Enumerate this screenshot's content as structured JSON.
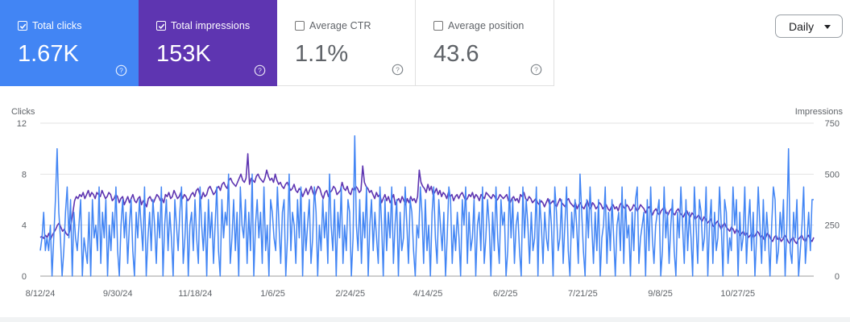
{
  "metrics": {
    "clicks": {
      "label": "Total clicks",
      "value": "1.67K",
      "checked": true,
      "color": "#4285f4"
    },
    "impressions": {
      "label": "Total impressions",
      "value": "153K",
      "checked": true,
      "color": "#5e35b1"
    },
    "ctr": {
      "label": "Average CTR",
      "value": "1.1%",
      "checked": false
    },
    "position": {
      "label": "Average position",
      "value": "43.6",
      "checked": false
    }
  },
  "controls": {
    "granularity": "Daily"
  },
  "chart_data": {
    "type": "line",
    "left_axis_label": "Clicks",
    "right_axis_label": "Impressions",
    "left_ticks": [
      "12",
      "8",
      "4",
      "0"
    ],
    "right_ticks": [
      "750",
      "500",
      "250",
      "0"
    ],
    "ylim_left": [
      0,
      12
    ],
    "ylim_right": [
      0,
      750
    ],
    "x_tick_labels": [
      "8/12/24",
      "9/30/24",
      "11/18/24",
      "1/6/25",
      "2/24/25",
      "4/14/25",
      "6/2/25",
      "7/21/25",
      "9/8/25",
      "10/27/25"
    ],
    "x_range": [
      "2024-08-12",
      "2025-12-14"
    ],
    "grid": true,
    "series": [
      {
        "name": "Clicks",
        "axis": "left",
        "color": "#4285f4",
        "values": [
          2,
          3,
          5,
          2,
          3,
          2,
          4,
          0,
          3,
          6,
          10,
          5,
          3,
          0,
          2,
          5,
          7,
          3,
          6,
          0,
          5,
          3,
          2,
          4,
          6,
          0,
          3,
          2,
          1,
          5,
          0,
          6,
          3,
          4,
          2,
          7,
          1,
          5,
          3,
          6,
          0,
          4,
          2,
          5,
          3,
          7,
          2,
          0,
          4,
          6,
          3,
          5,
          1,
          4,
          6,
          2,
          0,
          5,
          3,
          6,
          4,
          2,
          7,
          0,
          3,
          5,
          2,
          6,
          4,
          1,
          5,
          3,
          7,
          0,
          4,
          6,
          2,
          5,
          3,
          0,
          6,
          4,
          2,
          5,
          7,
          1,
          3,
          6,
          0,
          4,
          5,
          2,
          6,
          3,
          1,
          7,
          4,
          2,
          5,
          0,
          6,
          3,
          5,
          1,
          4,
          7,
          2,
          0,
          6,
          3,
          5,
          4,
          8,
          1,
          3,
          6,
          2,
          5,
          0,
          7,
          4,
          3,
          6,
          1,
          5,
          2,
          8,
          0,
          4,
          6,
          3,
          5,
          1,
          7,
          2,
          4,
          0,
          6,
          5,
          3,
          2,
          7,
          4,
          1,
          5,
          6,
          0,
          3,
          8,
          2,
          5,
          4,
          1,
          6,
          3,
          7,
          0,
          5,
          2,
          4,
          6,
          1,
          3,
          7,
          5,
          0,
          4,
          2,
          6,
          3,
          5,
          1,
          8,
          4,
          2,
          6,
          0,
          5,
          3,
          7,
          1,
          4,
          2,
          6,
          5,
          0,
          3,
          11,
          4,
          2,
          6,
          1,
          5,
          3,
          7,
          0,
          4,
          6,
          2,
          5,
          3,
          1,
          7,
          4,
          0,
          6,
          2,
          5,
          3,
          7,
          1,
          4,
          6,
          0,
          5,
          2,
          3,
          7,
          4,
          1,
          6,
          5,
          2,
          0,
          4,
          3,
          7,
          5,
          1,
          6,
          2,
          4,
          0,
          5,
          7,
          3,
          1,
          6,
          4,
          2,
          5,
          0,
          3,
          7,
          6,
          1,
          4,
          2,
          5,
          3,
          0,
          6,
          4,
          7,
          1,
          5,
          2,
          3,
          6,
          0,
          4,
          5,
          2,
          7,
          1,
          3,
          6,
          4,
          0,
          5,
          2,
          7,
          3,
          1,
          6,
          4,
          5,
          0,
          2,
          7,
          3,
          6,
          1,
          4,
          5,
          2,
          0,
          7,
          3,
          6,
          4,
          1,
          5,
          2,
          3,
          7,
          0,
          6,
          4,
          1,
          5,
          3,
          2,
          6,
          4,
          0,
          7,
          5,
          2,
          3,
          6,
          1,
          4,
          7,
          2,
          0,
          5,
          3,
          6,
          4,
          1,
          8,
          5,
          2,
          0,
          6,
          3,
          7,
          4,
          1,
          5,
          2,
          6,
          0,
          3,
          4,
          7,
          1,
          5,
          2,
          6,
          3,
          0,
          4,
          5,
          2,
          7,
          1,
          6,
          3,
          4,
          0,
          5,
          2,
          6,
          7,
          1,
          3,
          4,
          5,
          0,
          6,
          2,
          7,
          3,
          1,
          4,
          5,
          6,
          0,
          2,
          7,
          3,
          5,
          1,
          4,
          6,
          2,
          0,
          5,
          3,
          7,
          4,
          1,
          6,
          2,
          5,
          3,
          0,
          7,
          4,
          1,
          6,
          5,
          2,
          3,
          7,
          0,
          4,
          6,
          1,
          5,
          2,
          3,
          7,
          4,
          0,
          6,
          5,
          1,
          3,
          2,
          7,
          4,
          6,
          0,
          5,
          2,
          3,
          7,
          1,
          4,
          6,
          2,
          5,
          0,
          3,
          7,
          4,
          1,
          6,
          2,
          5,
          3,
          0,
          4,
          7,
          6,
          1,
          2,
          5,
          3,
          6,
          0,
          4,
          10,
          2,
          1,
          5,
          3,
          6,
          0,
          2,
          4,
          7,
          1,
          3,
          5,
          2,
          6,
          6
        ]
      },
      {
        "name": "Impressions",
        "axis": "right",
        "color": "#5e35b1",
        "values": [
          190,
          195,
          185,
          200,
          190,
          210,
          180,
          200,
          215,
          230,
          250,
          260,
          240,
          220,
          230,
          210,
          200,
          215,
          260,
          310,
          370,
          390,
          380,
          400,
          390,
          410,
          380,
          400,
          420,
          390,
          410,
          400,
          380,
          410,
          400,
          390,
          420,
          400,
          380,
          390,
          410,
          400,
          370,
          380,
          400,
          390,
          360,
          380,
          390,
          350,
          370,
          390,
          360,
          380,
          400,
          370,
          360,
          380,
          390,
          350,
          370,
          360,
          340,
          380,
          390,
          370,
          360,
          380,
          400,
          390,
          370,
          380,
          360,
          400,
          390,
          410,
          380,
          390,
          420,
          400,
          380,
          390,
          410,
          380,
          400,
          390,
          370,
          380,
          400,
          410,
          390,
          420,
          430,
          400,
          380,
          410,
          390,
          400,
          430,
          440,
          420,
          400,
          410,
          430,
          440,
          420,
          450,
          460,
          440,
          430,
          470,
          480,
          460,
          450,
          440,
          460,
          480,
          500,
          470,
          460,
          480,
          600,
          450,
          480,
          470,
          460,
          490,
          500,
          480,
          470,
          460,
          480,
          520,
          490,
          470,
          480,
          460,
          500,
          470,
          450,
          460,
          440,
          430,
          450,
          460,
          440,
          420,
          430,
          450,
          420,
          410,
          430,
          420,
          390,
          410,
          430,
          400,
          420,
          440,
          410,
          390,
          420,
          440,
          430,
          400,
          380,
          410,
          420,
          390,
          410,
          420,
          440,
          430,
          400,
          410,
          420,
          460,
          430,
          420,
          440,
          410,
          400,
          430,
          420,
          440,
          430,
          410,
          420,
          540,
          460,
          440,
          430,
          410,
          420,
          400,
          380,
          410,
          390,
          400,
          360,
          380,
          400,
          370,
          390,
          360,
          380,
          400,
          350,
          370,
          380,
          360,
          390,
          370,
          350,
          380,
          360,
          390,
          370,
          380,
          360,
          390,
          520,
          460,
          440,
          430,
          410,
          450,
          420,
          440,
          400,
          410,
          430,
          400,
          420,
          390,
          410,
          400,
          380,
          410,
          390,
          400,
          370,
          390,
          400,
          380,
          400,
          410,
          390,
          370,
          380,
          400,
          390,
          410,
          380,
          400,
          390,
          370,
          400,
          390,
          380,
          410,
          400,
          390,
          380,
          400,
          390,
          370,
          380,
          400,
          390,
          380,
          390,
          400,
          370,
          360,
          380,
          390,
          370,
          380,
          360,
          400,
          390,
          410,
          380,
          370,
          390,
          380,
          360,
          370,
          380,
          360,
          350,
          370,
          360,
          340,
          360,
          380,
          350,
          360,
          370,
          350,
          340,
          360,
          380,
          360,
          350,
          340,
          370,
          380,
          360,
          350,
          340,
          360,
          330,
          350,
          360,
          340,
          330,
          350,
          370,
          340,
          330,
          360,
          350,
          330,
          340,
          360,
          350,
          330,
          340,
          350,
          330,
          320,
          340,
          350,
          330,
          340,
          320,
          350,
          360,
          340,
          330,
          350,
          340,
          320,
          330,
          350,
          340,
          320,
          330,
          350,
          340,
          330,
          310,
          330,
          340,
          320,
          300,
          320,
          330,
          310,
          300,
          320,
          330,
          340,
          310,
          300,
          320,
          330,
          310,
          300,
          320,
          330,
          310,
          300,
          290,
          310,
          320,
          300,
          290,
          310,
          300,
          280,
          290,
          300,
          280,
          270,
          290,
          280,
          260,
          270,
          280,
          250,
          240,
          260,
          270,
          250,
          230,
          250,
          260,
          240,
          230,
          220,
          240,
          230,
          210,
          230,
          220,
          200,
          210,
          220,
          200,
          210,
          190,
          200,
          210,
          190,
          200,
          220,
          210,
          190,
          200,
          180,
          190,
          210,
          200,
          180,
          170,
          190,
          200,
          180,
          190,
          170,
          180,
          200,
          190,
          170,
          160,
          180,
          190,
          170,
          160,
          180,
          190,
          200,
          180,
          170,
          190,
          200,
          180,
          170,
          190
        ]
      }
    ]
  }
}
